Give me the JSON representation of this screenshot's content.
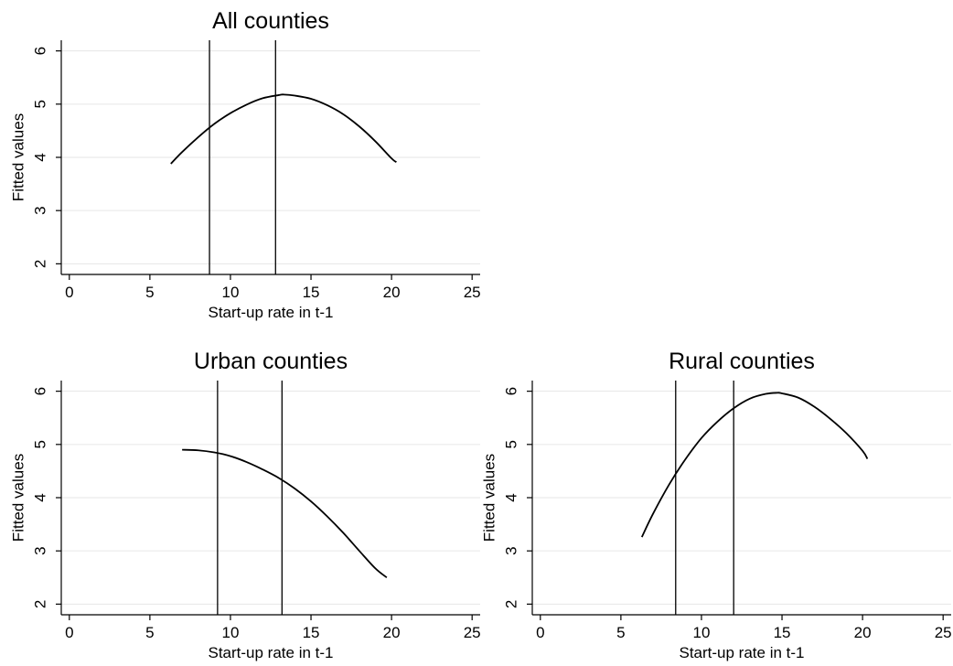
{
  "chart_data": [
    {
      "type": "line",
      "title": "All counties",
      "xlabel": "Start-up rate in t-1",
      "ylabel": "Fitted values",
      "xlim": [
        -0.5,
        25.5
      ],
      "ylim": [
        1.8,
        6.2
      ],
      "xticks": [
        0,
        5,
        10,
        15,
        20,
        25
      ],
      "yticks": [
        2,
        3,
        4,
        5,
        6
      ],
      "grid": true,
      "vlines": [
        8.7,
        12.8
      ],
      "series": [
        {
          "x": [
            6.3,
            7.0,
            8.0,
            9.0,
            10.0,
            11.0,
            12.0,
            13.0,
            13.3,
            14.0,
            15.0,
            16.0,
            17.0,
            18.0,
            19.0,
            20.0,
            20.3
          ],
          "y": [
            3.88,
            4.1,
            4.38,
            4.63,
            4.83,
            4.99,
            5.11,
            5.17,
            5.18,
            5.16,
            5.1,
            4.98,
            4.81,
            4.58,
            4.3,
            3.98,
            3.91
          ]
        }
      ]
    },
    {
      "type": "line",
      "title": "Urban counties",
      "xlabel": "Start-up rate in t-1",
      "ylabel": "Fitted values",
      "xlim": [
        -0.5,
        25.5
      ],
      "ylim": [
        1.8,
        6.2
      ],
      "xticks": [
        0,
        5,
        10,
        15,
        20,
        25
      ],
      "yticks": [
        2,
        3,
        4,
        5,
        6
      ],
      "grid": true,
      "vlines": [
        9.2,
        13.2
      ],
      "series": [
        {
          "x": [
            7.0,
            8.0,
            9.0,
            10.0,
            11.0,
            12.0,
            13.0,
            14.0,
            15.0,
            16.0,
            17.0,
            18.0,
            19.0,
            19.7
          ],
          "y": [
            4.9,
            4.89,
            4.85,
            4.78,
            4.67,
            4.53,
            4.37,
            4.17,
            3.93,
            3.65,
            3.34,
            3.0,
            2.67,
            2.5
          ]
        }
      ]
    },
    {
      "type": "line",
      "title": "Rural counties",
      "xlabel": "Start-up rate in t-1",
      "ylabel": "Fitted values",
      "xlim": [
        -0.5,
        25.5
      ],
      "ylim": [
        1.8,
        6.2
      ],
      "xticks": [
        0,
        5,
        10,
        15,
        20,
        25
      ],
      "yticks": [
        2,
        3,
        4,
        5,
        6
      ],
      "grid": true,
      "vlines": [
        8.4,
        12.0
      ],
      "series": [
        {
          "x": [
            6.3,
            7.0,
            8.0,
            9.0,
            10.0,
            11.0,
            12.0,
            13.0,
            14.0,
            14.7,
            15.0,
            16.0,
            17.0,
            18.0,
            19.0,
            20.0,
            20.3
          ],
          "y": [
            3.26,
            3.7,
            4.25,
            4.72,
            5.12,
            5.43,
            5.68,
            5.86,
            5.95,
            5.97,
            5.96,
            5.88,
            5.71,
            5.48,
            5.21,
            4.88,
            4.73
          ]
        }
      ]
    }
  ]
}
